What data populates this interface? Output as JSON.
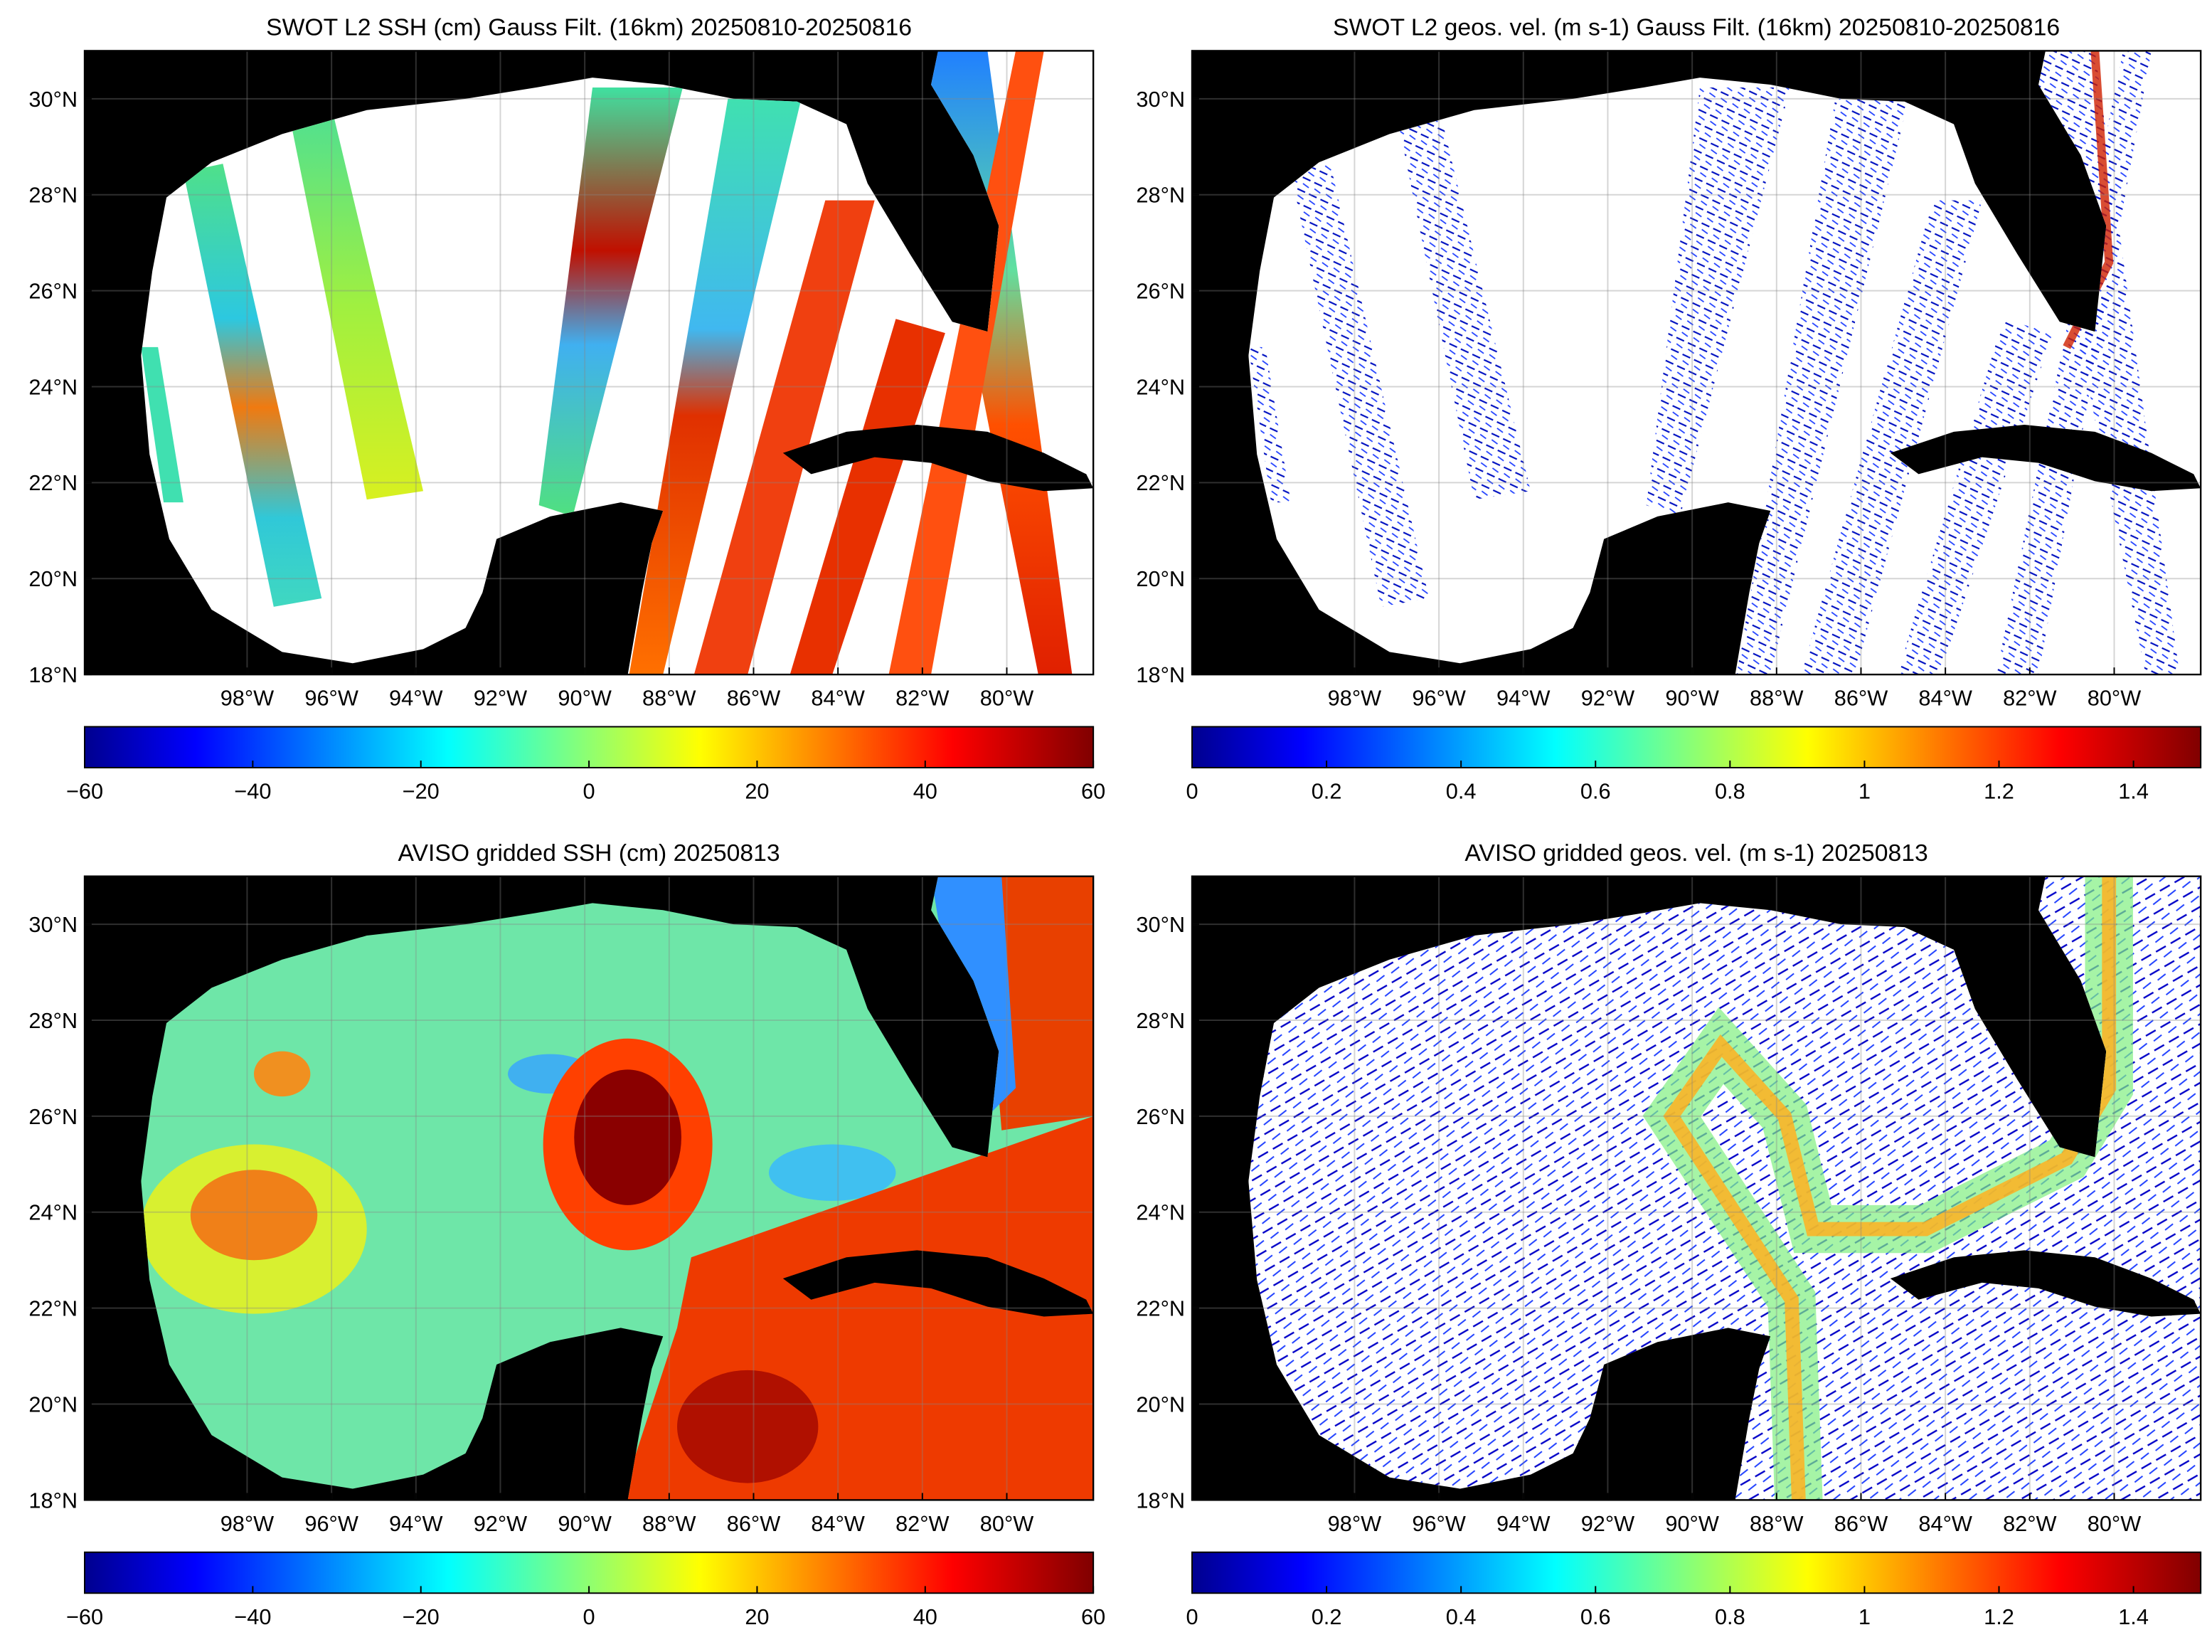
{
  "panels": [
    {
      "title": "SWOT L2 SSH (cm) Gauss Filt. (16km) 20250810-20250816",
      "lonlim": [
        -101.85,
        -77.95
      ],
      "latlim": [
        18,
        31
      ],
      "lonticks": [
        {
          "value": -98,
          "label": "98°W"
        },
        {
          "value": -96,
          "label": "96°W"
        },
        {
          "value": -94,
          "label": "94°W"
        },
        {
          "value": -92,
          "label": "92°W"
        },
        {
          "value": -90,
          "label": "90°W"
        },
        {
          "value": -88,
          "label": "88°W"
        },
        {
          "value": -86,
          "label": "86°W"
        },
        {
          "value": -84,
          "label": "84°W"
        },
        {
          "value": -82,
          "label": "82°W"
        },
        {
          "value": -80,
          "label": "80°W"
        }
      ],
      "latticks": [
        {
          "value": 18,
          "label": "18°N"
        },
        {
          "value": 20,
          "label": "20°N"
        },
        {
          "value": 22,
          "label": "22°N"
        },
        {
          "value": 24,
          "label": "24°N"
        },
        {
          "value": 26,
          "label": "26°N"
        },
        {
          "value": 28,
          "label": "28°N"
        },
        {
          "value": 30,
          "label": "30°N"
        }
      ],
      "colorbar": {
        "lim": [
          -60,
          60
        ],
        "ticks": [
          {
            "value": -60,
            "label": "−60"
          },
          {
            "value": -40,
            "label": "−40"
          },
          {
            "value": -20,
            "label": "−20"
          },
          0,
          20,
          40,
          60
        ]
      }
    },
    {
      "title": "SWOT L2 geos. vel. (m s-1) Gauss Filt. (16km) 20250810-20250816",
      "lonlim": [
        -101.85,
        -77.95
      ],
      "latlim": [
        18,
        31
      ],
      "lonticks": [
        {
          "value": -98,
          "label": "98°W"
        },
        {
          "value": -96,
          "label": "96°W"
        },
        {
          "value": -94,
          "label": "94°W"
        },
        {
          "value": -92,
          "label": "92°W"
        },
        {
          "value": -90,
          "label": "90°W"
        },
        {
          "value": -88,
          "label": "88°W"
        },
        {
          "value": -86,
          "label": "86°W"
        },
        {
          "value": -84,
          "label": "84°W"
        },
        {
          "value": -82,
          "label": "82°W"
        },
        {
          "value": -80,
          "label": "80°W"
        }
      ],
      "latticks": [
        {
          "value": 18,
          "label": "18°N"
        },
        {
          "value": 20,
          "label": "20°N"
        },
        {
          "value": 22,
          "label": "22°N"
        },
        {
          "value": 24,
          "label": "24°N"
        },
        {
          "value": 26,
          "label": "26°N"
        },
        {
          "value": 28,
          "label": "28°N"
        },
        {
          "value": 30,
          "label": "30°N"
        }
      ],
      "colorbar": {
        "lim": [
          0,
          1.5
        ],
        "ticks": [
          0,
          0.2,
          0.4,
          0.6,
          0.8,
          1,
          1.2,
          1.4
        ]
      }
    },
    {
      "title": "AVISO gridded SSH (cm) 20250813",
      "lonlim": [
        -101.85,
        -77.95
      ],
      "latlim": [
        18,
        31
      ],
      "lonticks": [
        {
          "value": -98,
          "label": "98°W"
        },
        {
          "value": -96,
          "label": "96°W"
        },
        {
          "value": -94,
          "label": "94°W"
        },
        {
          "value": -92,
          "label": "92°W"
        },
        {
          "value": -90,
          "label": "90°W"
        },
        {
          "value": -88,
          "label": "88°W"
        },
        {
          "value": -86,
          "label": "86°W"
        },
        {
          "value": -84,
          "label": "84°W"
        },
        {
          "value": -82,
          "label": "82°W"
        },
        {
          "value": -80,
          "label": "80°W"
        }
      ],
      "latticks": [
        {
          "value": 18,
          "label": "18°N"
        },
        {
          "value": 20,
          "label": "20°N"
        },
        {
          "value": 22,
          "label": "22°N"
        },
        {
          "value": 24,
          "label": "24°N"
        },
        {
          "value": 26,
          "label": "26°N"
        },
        {
          "value": 28,
          "label": "28°N"
        },
        {
          "value": 30,
          "label": "30°N"
        }
      ],
      "colorbar": {
        "lim": [
          -60,
          60
        ],
        "ticks": [
          {
            "value": -60,
            "label": "−60"
          },
          {
            "value": -40,
            "label": "−40"
          },
          {
            "value": -20,
            "label": "−20"
          },
          0,
          20,
          40,
          60
        ]
      }
    },
    {
      "title": "AVISO gridded geos. vel. (m s-1)  20250813",
      "lonlim": [
        -101.85,
        -77.95
      ],
      "latlim": [
        18,
        31
      ],
      "lonticks": [
        {
          "value": -98,
          "label": "98°W"
        },
        {
          "value": -96,
          "label": "96°W"
        },
        {
          "value": -94,
          "label": "94°W"
        },
        {
          "value": -92,
          "label": "92°W"
        },
        {
          "value": -90,
          "label": "90°W"
        },
        {
          "value": -88,
          "label": "88°W"
        },
        {
          "value": -86,
          "label": "86°W"
        },
        {
          "value": -84,
          "label": "84°W"
        },
        {
          "value": -82,
          "label": "82°W"
        },
        {
          "value": -80,
          "label": "80°W"
        }
      ],
      "latticks": [
        {
          "value": 18,
          "label": "18°N"
        },
        {
          "value": 20,
          "label": "20°N"
        },
        {
          "value": 22,
          "label": "22°N"
        },
        {
          "value": 24,
          "label": "24°N"
        },
        {
          "value": 26,
          "label": "26°N"
        },
        {
          "value": 28,
          "label": "28°N"
        },
        {
          "value": 30,
          "label": "30°N"
        }
      ],
      "colorbar": {
        "lim": [
          0,
          1.5
        ],
        "ticks": [
          0,
          0.2,
          0.4,
          0.6,
          0.8,
          1,
          1.2,
          1.4
        ]
      }
    }
  ]
}
